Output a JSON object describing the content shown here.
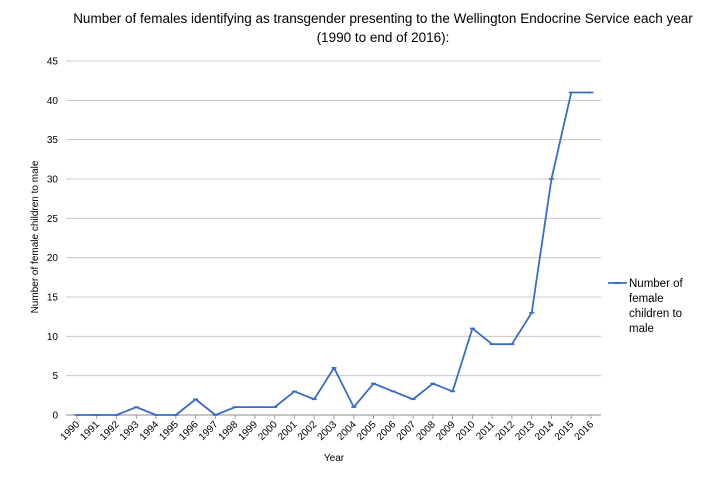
{
  "chart_data": {
    "type": "line",
    "title_lines": [
      "Number of females identifying as transgender presenting to the Wellington Endocrine Service each year",
      "(1990 to end of 2016):"
    ],
    "xlabel": "Year",
    "ylabel": "Number of female children to male",
    "ylim": [
      0,
      45
    ],
    "yticks": [
      0,
      5,
      10,
      15,
      20,
      25,
      30,
      35,
      40,
      45
    ],
    "grid": true,
    "legend_position": "right",
    "categories": [
      "1990",
      "1991",
      "1992",
      "1993",
      "1994",
      "1995",
      "1996",
      "1997",
      "1998",
      "1999",
      "2000",
      "2001",
      "2002",
      "2003",
      "2004",
      "2005",
      "2006",
      "2007",
      "2008",
      "2009",
      "2010",
      "2011",
      "2012",
      "2013",
      "2014",
      "2015",
      "2016"
    ],
    "series": [
      {
        "name_lines": [
          "Number of",
          "female",
          "children to",
          "male"
        ],
        "color": "#3a6cc4",
        "values": [
          0,
          0,
          0,
          1,
          0,
          0,
          2,
          0,
          1,
          1,
          1,
          3,
          2,
          6,
          1,
          4,
          3,
          2,
          4,
          3,
          11,
          9,
          9,
          13,
          30,
          41,
          41
        ]
      }
    ]
  }
}
